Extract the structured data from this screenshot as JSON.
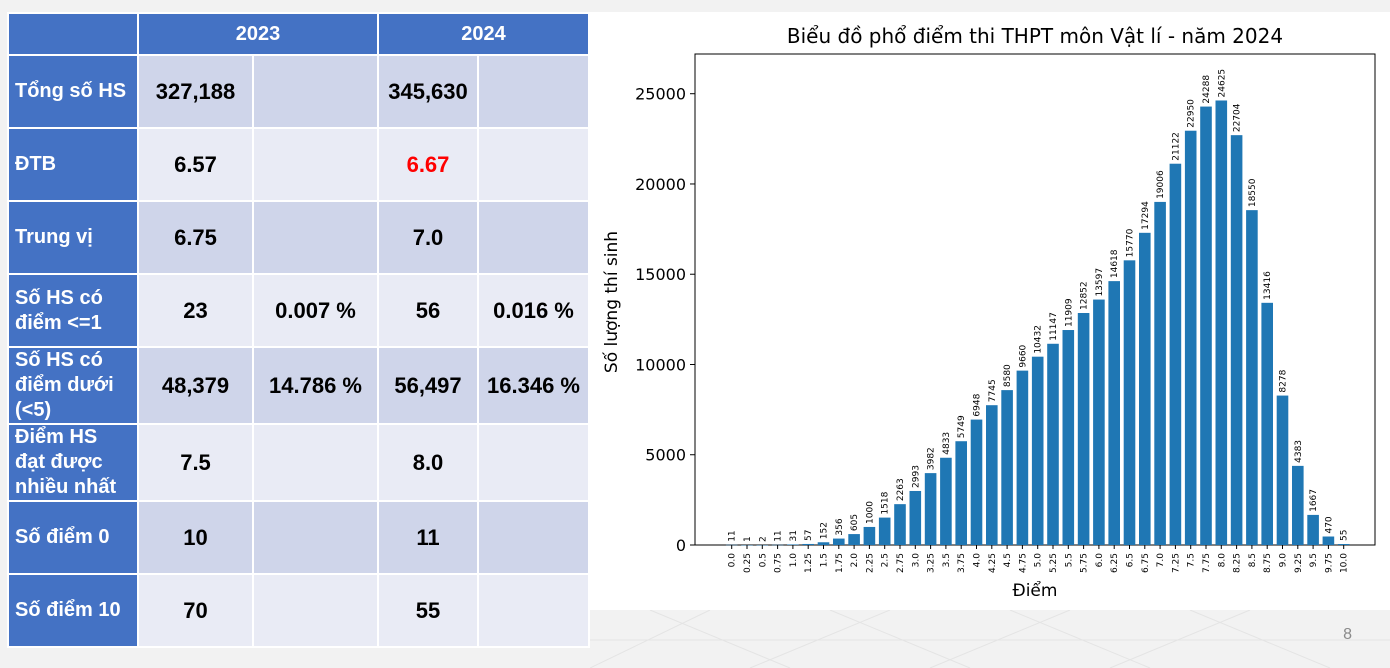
{
  "table": {
    "headers": [
      "2023",
      "2024"
    ],
    "rows": [
      {
        "label": "Tổng số HS",
        "v2023": "327,188",
        "p2023": "",
        "v2024": "345,630",
        "p2024": ""
      },
      {
        "label": "ĐTB",
        "v2023": "6.57",
        "p2023": "",
        "v2024": "6.67",
        "p2024": ""
      },
      {
        "label": "Trung vị",
        "v2023": "6.75",
        "p2023": "",
        "v2024": "7.0",
        "p2024": ""
      },
      {
        "label": "Số HS có điểm <=1",
        "v2023": "23",
        "p2023": "0.007 %",
        "v2024": "56",
        "p2024": "0.016 %"
      },
      {
        "label": "Số HS có điểm dưới (<5)",
        "v2023": "48,379",
        "p2023": "14.786 %",
        "v2024": "56,497",
        "p2024": "16.346 %"
      },
      {
        "label": "Điểm HS đạt được nhiều nhất",
        "v2023": "7.5",
        "p2023": "",
        "v2024": "8.0",
        "p2024": ""
      },
      {
        "label": "Số điểm 0",
        "v2023": "10",
        "p2023": "",
        "v2024": "11",
        "p2024": ""
      },
      {
        "label": "Số điểm 10",
        "v2023": "70",
        "p2023": "",
        "v2024": "55",
        "p2024": ""
      }
    ],
    "highlight_color": "#ff0000",
    "header_color": "#4472c4"
  },
  "slide_number": "8",
  "chart_data": {
    "type": "bar",
    "title": "Biểu đồ phổ điểm thi THPT môn Vật lí - năm 2024",
    "xlabel": "Điểm",
    "ylabel": "Số lượng thí sinh",
    "categories": [
      "0.0",
      "0.25",
      "0.5",
      "0.75",
      "1.0",
      "1.25",
      "1.5",
      "1.75",
      "2.0",
      "2.25",
      "2.5",
      "2.75",
      "3.0",
      "3.25",
      "3.5",
      "3.75",
      "4.0",
      "4.25",
      "4.5",
      "4.75",
      "5.0",
      "5.25",
      "5.5",
      "5.75",
      "6.0",
      "6.25",
      "6.5",
      "6.75",
      "7.0",
      "7.25",
      "7.5",
      "7.75",
      "8.0",
      "8.25",
      "8.5",
      "8.75",
      "9.0",
      "9.25",
      "9.5",
      "9.75",
      "10.0"
    ],
    "values": [
      11,
      1,
      2,
      11,
      31,
      57,
      152,
      356,
      605,
      1000,
      1518,
      2263,
      2993,
      3982,
      4833,
      5749,
      6948,
      7745,
      8580,
      9660,
      10432,
      11147,
      11909,
      12852,
      13597,
      14618,
      15770,
      17294,
      19006,
      21122,
      22950,
      24288,
      24625,
      22704,
      18550,
      13416,
      8278,
      4383,
      1667,
      470,
      55
    ],
    "yticks": [
      0,
      5000,
      10000,
      15000,
      20000,
      25000
    ],
    "ylim": [
      0,
      27200
    ],
    "bar_color": "#1f77b4",
    "grid": false
  }
}
